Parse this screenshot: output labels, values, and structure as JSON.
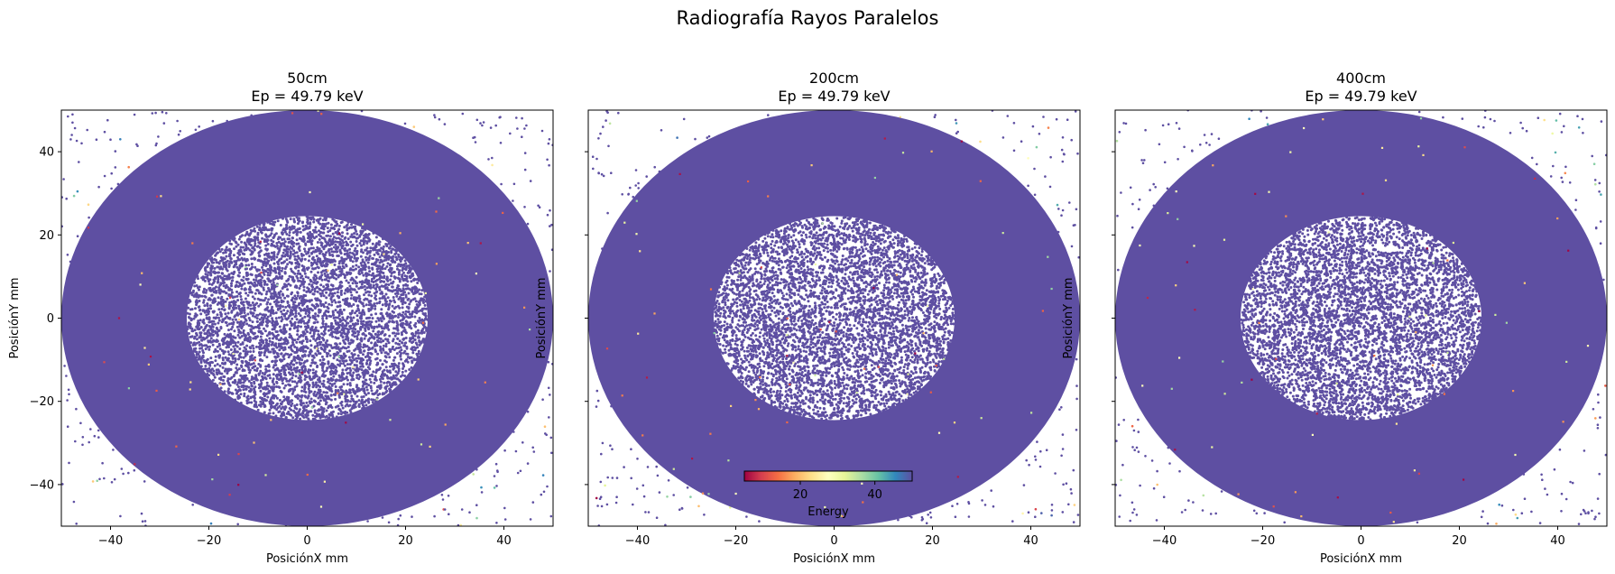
{
  "figure": {
    "title": "Radiografía Rayos Paralelos",
    "colormap": [
      "#9e0142",
      "#d53e4f",
      "#f46d43",
      "#fdae61",
      "#fee08b",
      "#ffffbf",
      "#e6f598",
      "#abdda4",
      "#66c2a5",
      "#3288bd",
      "#5e4fa2"
    ]
  },
  "chart_data": [
    {
      "type": "scatter",
      "title": "50cm\nEp = 49.79 keV",
      "xlabel": "PosiciónX mm",
      "ylabel": "PosiciónY mm",
      "xlim": [
        -50,
        50
      ],
      "ylim": [
        -50,
        50
      ],
      "xticks": [
        -40,
        -20,
        0,
        20,
        40
      ],
      "yticks": [
        -40,
        -20,
        0,
        20,
        40
      ],
      "grid": false,
      "primary_energy_kev": 49.79,
      "dense_disk": {
        "cx": 0,
        "cy": 0,
        "r": 50
      },
      "hollow_region": {
        "cx": 0,
        "cy": 0,
        "r": 24.5
      },
      "dominant_color": "#5e4fa2"
    },
    {
      "type": "scatter",
      "title": "200cm\nEp = 49.79 keV",
      "xlabel": "PosiciónX mm",
      "ylabel": "PosiciónY mm",
      "xlim": [
        -50,
        50
      ],
      "ylim": [
        -50,
        50
      ],
      "xticks": [
        -40,
        -20,
        0,
        20,
        40
      ],
      "yticks": [
        -40,
        -20,
        0,
        20,
        40
      ],
      "grid": false,
      "primary_energy_kev": 49.79,
      "dense_disk": {
        "cx": 0,
        "cy": 0,
        "r": 50
      },
      "hollow_region": {
        "cx": 0,
        "cy": 0,
        "r": 24.5
      },
      "dominant_color": "#5e4fa2"
    },
    {
      "type": "scatter",
      "title": "400cm\nEp = 49.79 keV",
      "xlabel": "PosiciónX mm",
      "ylabel": "PosiciónY mm",
      "xlim": [
        -50,
        50
      ],
      "ylim": [
        -50,
        50
      ],
      "xticks": [
        -40,
        -20,
        0,
        20,
        40
      ],
      "yticks": [
        -40,
        -20,
        0,
        20,
        40
      ],
      "grid": false,
      "primary_energy_kev": 49.79,
      "dense_disk": {
        "cx": 0,
        "cy": 0,
        "r": 50
      },
      "hollow_region": {
        "cx": 0,
        "cy": 0,
        "r": 24.5
      },
      "dominant_color": "#5e4fa2"
    }
  ],
  "colorbar": {
    "label": "Energy",
    "range": [
      5,
      50
    ],
    "ticks": [
      20,
      40
    ],
    "orientation": "horizontal",
    "cmap": "Spectral"
  }
}
